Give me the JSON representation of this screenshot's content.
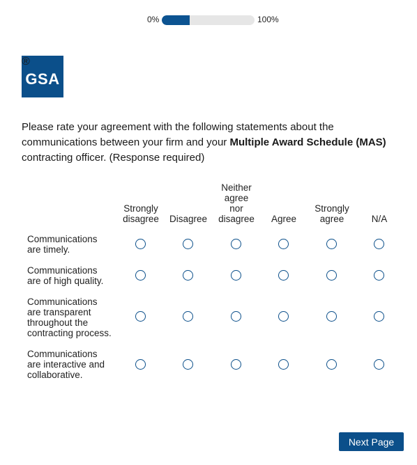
{
  "progress": {
    "start_label": "0%",
    "end_label": "100%",
    "value_percent": 30,
    "bar_color": "#0c5391"
  },
  "logo": {
    "text": "GSA",
    "registered_mark": "®",
    "color": "#0b4f8a"
  },
  "question": {
    "text_before": "Please rate your agreement with the following statements about the communications between your firm and your ",
    "bold_text": "Multiple Award Schedule (MAS)",
    "text_after": " contracting officer. (Response required)"
  },
  "columns": [
    {
      "lines": [
        "Strongly",
        "disagree"
      ]
    },
    {
      "lines": [
        "Disagree"
      ]
    },
    {
      "lines": [
        "Neither",
        "agree",
        "nor",
        "disagree"
      ]
    },
    {
      "lines": [
        "Agree"
      ]
    },
    {
      "lines": [
        "Strongly",
        "agree"
      ]
    },
    {
      "lines": [
        "N/A"
      ]
    }
  ],
  "rows": [
    {
      "lines": [
        "Communications",
        "are timely."
      ]
    },
    {
      "lines": [
        "Communications",
        "are of high quality."
      ]
    },
    {
      "lines": [
        "Communications",
        "are transparent",
        "throughout the",
        "contracting process."
      ]
    },
    {
      "lines": [
        "Communications",
        "are interactive and",
        "collaborative."
      ]
    }
  ],
  "footer": {
    "next_label": "Next Page"
  }
}
